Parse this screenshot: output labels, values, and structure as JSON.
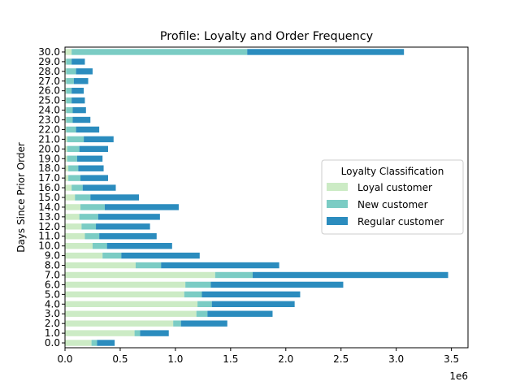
{
  "chart_data": {
    "type": "bar",
    "orientation": "horizontal",
    "stacked": true,
    "title": "Profile: Loyalty and Order Frequency",
    "ylabel": "Days Since Prior Order",
    "xlabel": "",
    "x_scale_label": "1e6",
    "xlim": [
      0,
      3.65
    ],
    "x_ticks": [
      "0.0",
      "0.5",
      "1.0",
      "1.5",
      "2.0",
      "2.5",
      "3.0",
      "3.5"
    ],
    "x_tick_values": [
      0,
      0.5,
      1.0,
      1.5,
      2.0,
      2.5,
      3.0,
      3.5
    ],
    "categories": [
      "0.0",
      "1.0",
      "2.0",
      "3.0",
      "4.0",
      "5.0",
      "6.0",
      "7.0",
      "8.0",
      "9.0",
      "10.0",
      "11.0",
      "12.0",
      "13.0",
      "14.0",
      "15.0",
      "16.0",
      "17.0",
      "18.0",
      "19.0",
      "20.0",
      "21.0",
      "22.0",
      "23.0",
      "24.0",
      "25.0",
      "26.0",
      "27.0",
      "28.0",
      "29.0",
      "30.0"
    ],
    "legend": {
      "title": "Loyalty Classification",
      "placement": "center-right"
    },
    "series": [
      {
        "name": "Loyal customer",
        "color": "#ccebc5",
        "values": [
          0.24,
          0.63,
          0.98,
          1.19,
          1.2,
          1.08,
          1.09,
          1.36,
          0.64,
          0.34,
          0.25,
          0.18,
          0.15,
          0.13,
          0.14,
          0.09,
          0.06,
          0.03,
          0.03,
          0.02,
          0.02,
          0.02,
          0.01,
          0.01,
          0.01,
          0.01,
          0.01,
          0.01,
          0.01,
          0.01,
          0.06
        ]
      },
      {
        "name": "New customer",
        "color": "#7bccc4",
        "values": [
          0.05,
          0.05,
          0.07,
          0.1,
          0.13,
          0.16,
          0.23,
          0.34,
          0.23,
          0.17,
          0.13,
          0.13,
          0.13,
          0.17,
          0.22,
          0.14,
          0.1,
          0.11,
          0.09,
          0.09,
          0.11,
          0.15,
          0.09,
          0.06,
          0.06,
          0.05,
          0.05,
          0.07,
          0.09,
          0.05,
          1.59
        ]
      },
      {
        "name": "Regular customer",
        "color": "#2b8cbe",
        "values": [
          0.16,
          0.26,
          0.42,
          0.59,
          0.75,
          0.89,
          1.2,
          1.77,
          1.07,
          0.71,
          0.59,
          0.52,
          0.49,
          0.56,
          0.67,
          0.44,
          0.3,
          0.25,
          0.23,
          0.23,
          0.26,
          0.27,
          0.21,
          0.16,
          0.12,
          0.12,
          0.11,
          0.13,
          0.15,
          0.12,
          1.42
        ]
      }
    ]
  }
}
